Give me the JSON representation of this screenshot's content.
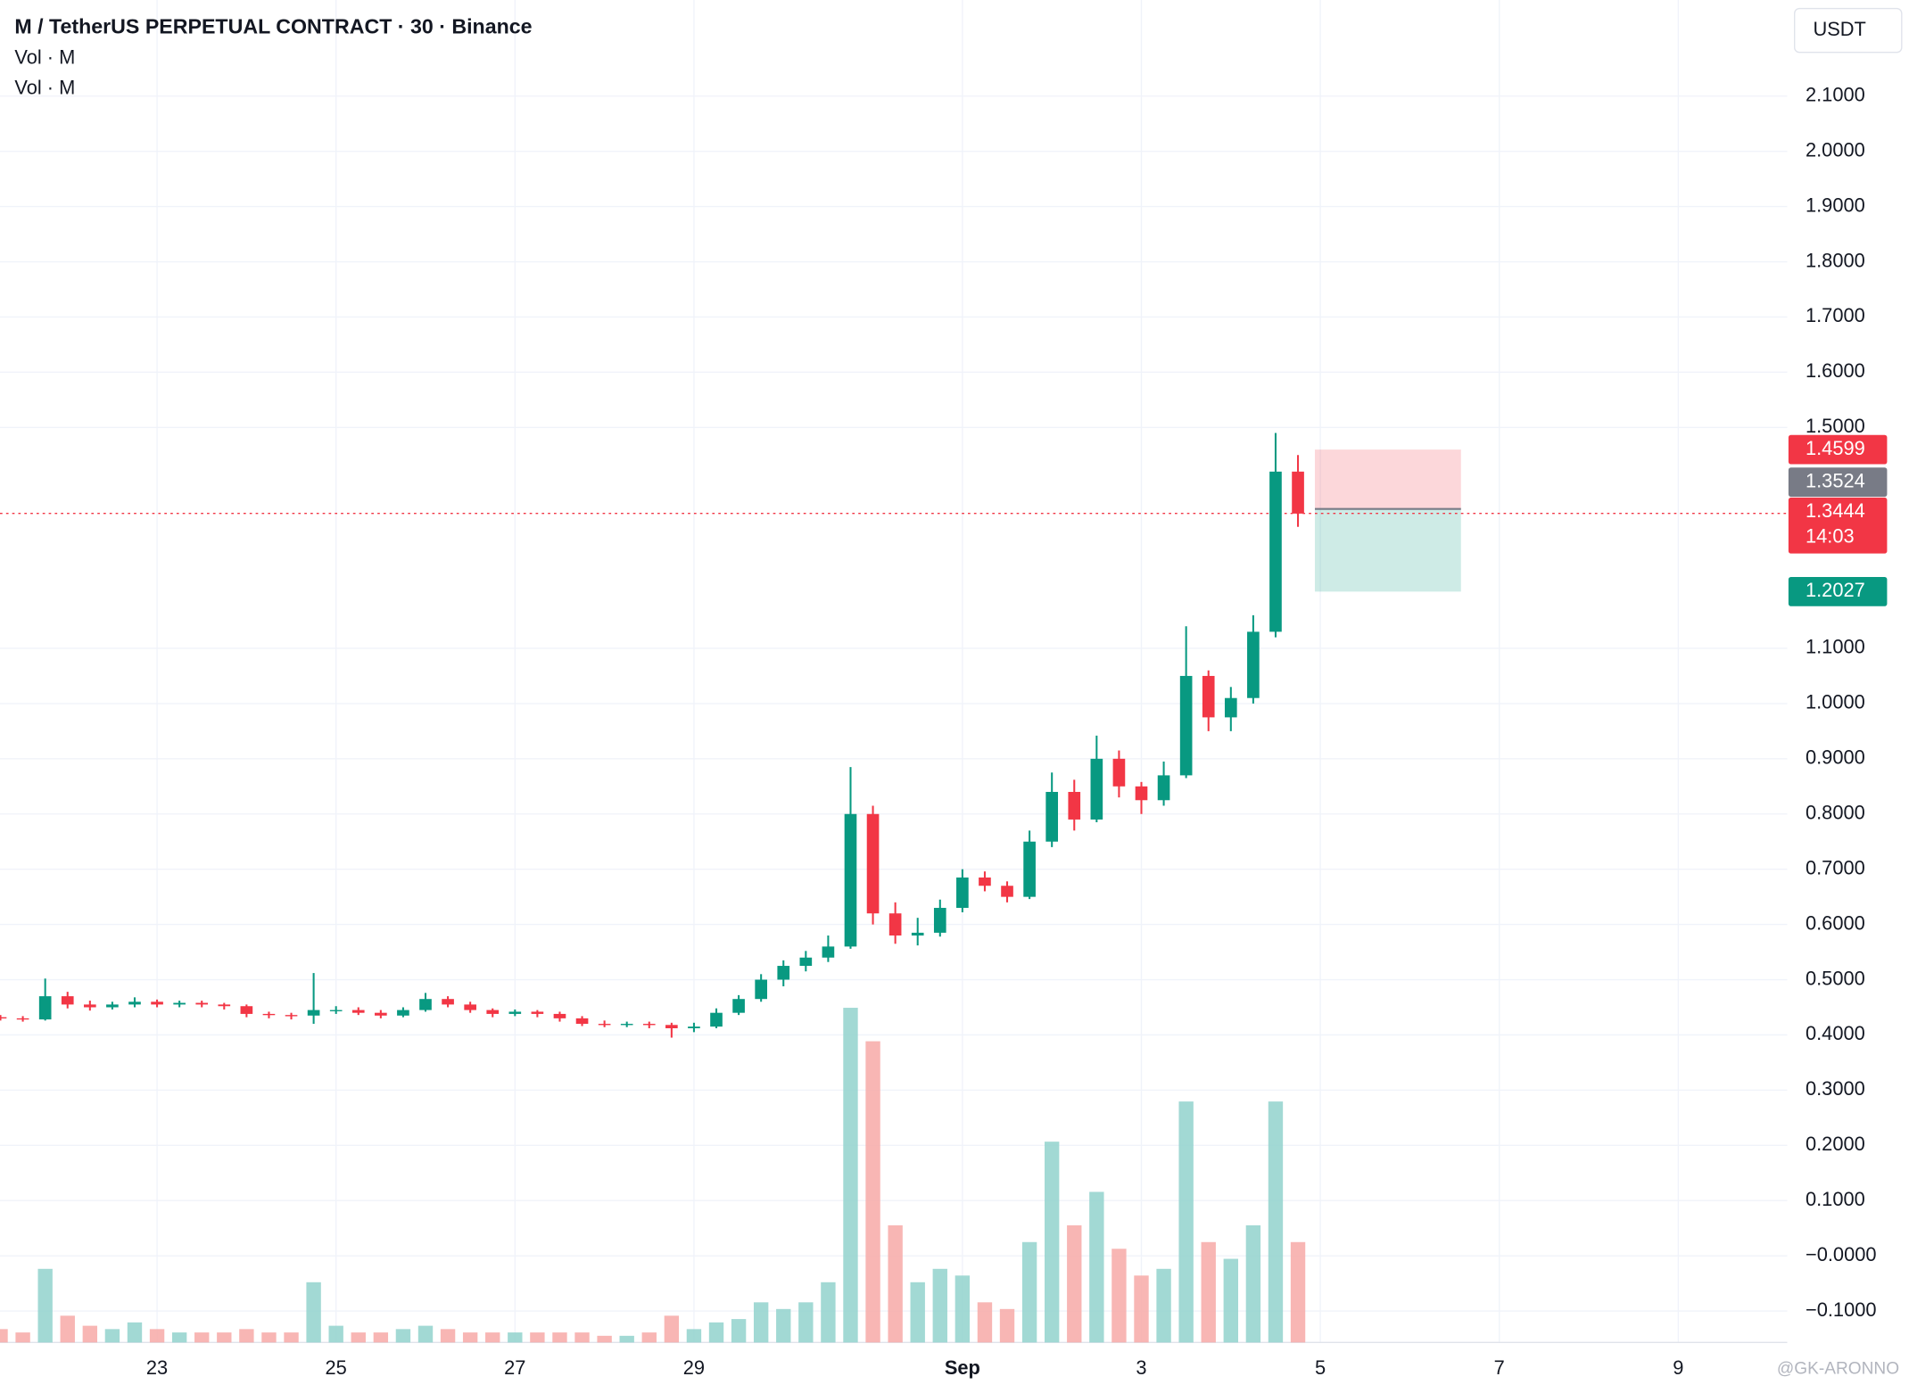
{
  "chart_data": {
    "type": "candlestick",
    "title": "M / TetherUS PERPETUAL CONTRACT · 30 · Binance",
    "indicators": [
      "Vol · M",
      "Vol · M"
    ],
    "currency": "USDT",
    "watermark": "@GK-ARONNO",
    "categories": [
      null,
      null,
      null,
      null,
      null,
      null,
      null,
      "23",
      null,
      null,
      null,
      null,
      null,
      null,
      null,
      "25",
      null,
      null,
      null,
      null,
      null,
      null,
      null,
      "27",
      null,
      null,
      null,
      null,
      null,
      null,
      null,
      "29",
      null,
      null,
      null,
      null,
      null,
      null,
      null,
      null,
      null,
      null,
      null,
      "Sep",
      null,
      null,
      null,
      null,
      null,
      null,
      null,
      "3",
      null,
      null,
      null,
      null,
      null,
      null,
      null,
      "5",
      null,
      null,
      null,
      null,
      null,
      null,
      null,
      "7",
      null,
      null,
      null,
      null,
      null,
      null,
      null,
      "9",
      null,
      null,
      null,
      null
    ],
    "open": [
      0.432,
      0.43,
      0.428,
      0.47,
      0.455,
      0.45,
      0.455,
      0.46,
      0.455,
      0.458,
      0.455,
      0.452,
      0.438,
      0.436,
      0.435,
      0.445,
      0.445,
      0.44,
      0.435,
      0.445,
      0.465,
      0.455,
      0.445,
      0.438,
      0.442,
      0.438,
      0.43,
      0.42,
      0.418,
      0.42,
      0.418,
      0.412,
      0.415,
      0.44,
      0.465,
      0.5,
      0.525,
      0.54,
      0.56,
      0.8,
      0.62,
      0.58,
      0.585,
      0.63,
      0.685,
      0.67,
      0.65,
      0.75,
      0.84,
      0.79,
      0.9,
      0.85,
      0.825,
      0.87,
      1.05,
      0.975,
      1.01,
      1.13,
      1.42,
      null,
      null,
      null,
      null,
      null,
      null,
      null,
      null,
      null,
      null,
      null,
      null,
      null,
      null,
      null,
      null,
      null,
      null,
      null,
      null,
      null
    ],
    "high": [
      0.436,
      0.434,
      0.502,
      0.478,
      0.462,
      0.46,
      0.468,
      0.464,
      0.462,
      0.462,
      0.458,
      0.455,
      0.442,
      0.44,
      0.512,
      0.452,
      0.45,
      0.445,
      0.45,
      0.476,
      0.47,
      0.46,
      0.448,
      0.446,
      0.445,
      0.442,
      0.434,
      0.426,
      0.424,
      0.424,
      0.422,
      0.422,
      0.448,
      0.472,
      0.51,
      0.535,
      0.552,
      0.58,
      0.885,
      0.815,
      0.64,
      0.612,
      0.645,
      0.7,
      0.696,
      0.678,
      0.77,
      0.875,
      0.862,
      0.942,
      0.915,
      0.858,
      0.895,
      1.14,
      1.06,
      1.03,
      1.16,
      1.49,
      1.45,
      null,
      null,
      null,
      null,
      null,
      null,
      null,
      null,
      null,
      null,
      null,
      null,
      null,
      null,
      null,
      null,
      null,
      null,
      null,
      null,
      null
    ],
    "low": [
      0.426,
      0.424,
      0.426,
      0.448,
      0.444,
      0.446,
      0.45,
      0.45,
      0.45,
      0.45,
      0.446,
      0.432,
      0.43,
      0.428,
      0.42,
      0.438,
      0.436,
      0.43,
      0.432,
      0.442,
      0.45,
      0.44,
      0.432,
      0.434,
      0.432,
      0.424,
      0.416,
      0.414,
      0.414,
      0.412,
      0.395,
      0.405,
      0.412,
      0.436,
      0.46,
      0.488,
      0.515,
      0.532,
      0.556,
      0.6,
      0.565,
      0.562,
      0.578,
      0.622,
      0.66,
      0.64,
      0.646,
      0.74,
      0.77,
      0.785,
      0.83,
      0.8,
      0.815,
      0.865,
      0.95,
      0.95,
      1.0,
      1.12,
      1.32,
      null,
      null,
      null,
      null,
      null,
      null,
      null,
      null,
      null,
      null,
      null,
      null,
      null,
      null,
      null,
      null,
      null,
      null,
      null,
      null,
      null
    ],
    "close": [
      0.43,
      0.428,
      0.47,
      0.455,
      0.45,
      0.455,
      0.46,
      0.455,
      0.458,
      0.455,
      0.452,
      0.438,
      0.436,
      0.435,
      0.445,
      0.445,
      0.44,
      0.435,
      0.445,
      0.465,
      0.455,
      0.445,
      0.438,
      0.442,
      0.438,
      0.43,
      0.42,
      0.418,
      0.42,
      0.418,
      0.412,
      0.415,
      0.44,
      0.465,
      0.5,
      0.525,
      0.54,
      0.56,
      0.8,
      0.62,
      0.58,
      0.585,
      0.63,
      0.685,
      0.67,
      0.65,
      0.75,
      0.84,
      0.79,
      0.9,
      0.85,
      0.825,
      0.87,
      1.05,
      0.975,
      1.01,
      1.13,
      1.42,
      1.344,
      null,
      null,
      null,
      null,
      null,
      null,
      null,
      null,
      null,
      null,
      null,
      null,
      null,
      null,
      null,
      null,
      null,
      null,
      null,
      null,
      null
    ],
    "volume": [
      4,
      3,
      22,
      8,
      5,
      4,
      6,
      4,
      3,
      3,
      3,
      4,
      3,
      3,
      18,
      5,
      3,
      3,
      4,
      5,
      4,
      3,
      3,
      3,
      3,
      3,
      3,
      2,
      2,
      3,
      8,
      4,
      6,
      7,
      12,
      10,
      12,
      18,
      100,
      90,
      35,
      18,
      22,
      20,
      12,
      10,
      30,
      60,
      35,
      45,
      28,
      20,
      22,
      72,
      30,
      25,
      35,
      72,
      30,
      null,
      null,
      null,
      null,
      null,
      null,
      null,
      null,
      null,
      null,
      null,
      null,
      null,
      null,
      null,
      null,
      null,
      null,
      null,
      null,
      null
    ],
    "up_color": "#089981",
    "down_color": "#f23645",
    "volume_up_color": "#92d2cc",
    "volume_down_color": "#f7a9a7",
    "ylim": [
      -0.157,
      2.274
    ],
    "yticks": [
      {
        "value": 2.1,
        "label": "2.1000"
      },
      {
        "value": 2.0,
        "label": "2.0000"
      },
      {
        "value": 1.9,
        "label": "1.9000"
      },
      {
        "value": 1.8,
        "label": "1.8000"
      },
      {
        "value": 1.7,
        "label": "1.7000"
      },
      {
        "value": 1.6,
        "label": "1.6000"
      },
      {
        "value": 1.5,
        "label": "1.5000"
      },
      {
        "value": 1.1,
        "label": "1.1000"
      },
      {
        "value": 1.0,
        "label": "1.0000"
      },
      {
        "value": 0.9,
        "label": "0.9000"
      },
      {
        "value": 0.8,
        "label": "0.8000"
      },
      {
        "value": 0.7,
        "label": "0.7000"
      },
      {
        "value": 0.6,
        "label": "0.6000"
      },
      {
        "value": 0.5,
        "label": "0.5000"
      },
      {
        "value": 0.4,
        "label": "0.4000"
      },
      {
        "value": 0.3,
        "label": "0.3000"
      },
      {
        "value": 0.2,
        "label": "0.2000"
      },
      {
        "value": 0.1,
        "label": "0.1000"
      },
      {
        "value": 0,
        "label": "−0.0000"
      },
      {
        "value": -0.1,
        "label": "−0.1000"
      }
    ],
    "grid": true,
    "position": {
      "stop_loss": 1.4599,
      "entry": 1.3524,
      "take_profit": 1.2027,
      "stop_color": "#f23645",
      "entry_color": "#787b86",
      "target_color": "#089981"
    },
    "last_price": 1.3444,
    "countdown": "14:03"
  }
}
